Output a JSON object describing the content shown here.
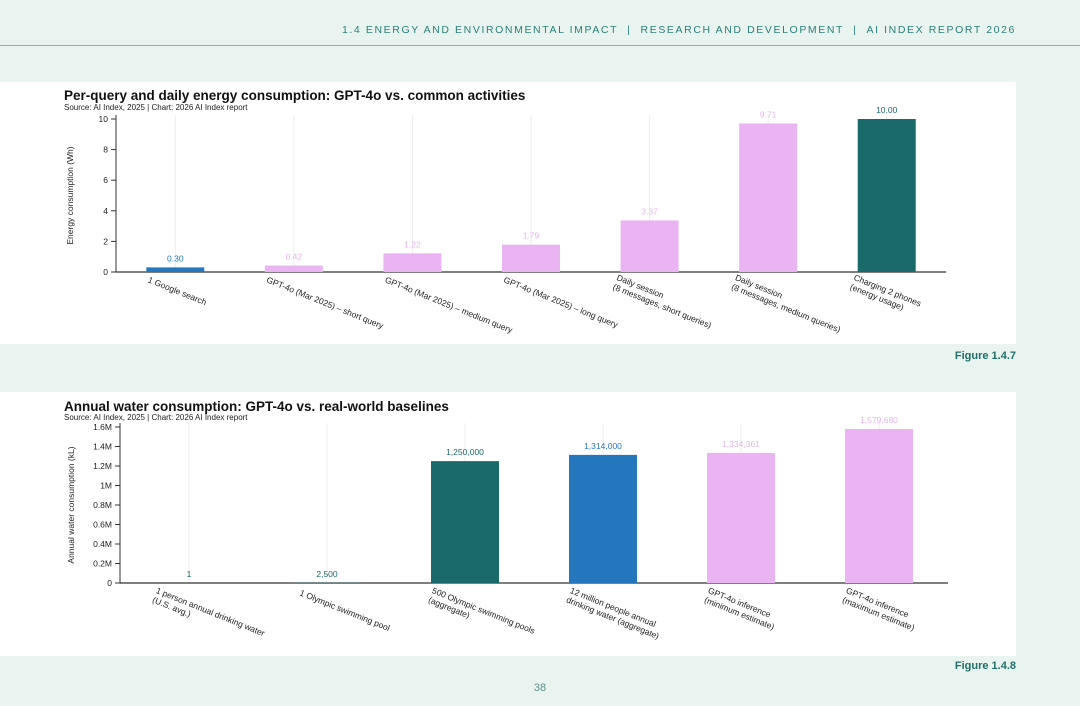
{
  "header": {
    "section": "1.4 ENERGY AND ENVIRONMENTAL IMPACT",
    "chapter": "RESEARCH AND DEVELOPMENT",
    "report": "AI INDEX REPORT 2026",
    "separator": "|"
  },
  "page_number": "38",
  "colors": {
    "pink": "#eab4f2",
    "teal": "#1b6a6a",
    "blue": "#2577bd",
    "header_text": "#2a7f78",
    "background": "#e9f4f0"
  },
  "chart_data": [
    {
      "type": "bar",
      "title": "Per-query and daily energy consumption: GPT-4o vs. common activities",
      "source": "Source: AI Index, 2025 | Chart: 2026 AI Index report",
      "ylabel": "Energy consumption (Wh)",
      "xlabel": "",
      "ylim": [
        0,
        10
      ],
      "yticks": [
        "0",
        "2",
        "4",
        "6",
        "8",
        "10"
      ],
      "grid": true,
      "categories": [
        [
          "1 Google search"
        ],
        [
          "GPT-4o (Mar 2025) – short query"
        ],
        [
          "GPT-4o (Mar 2025) – medium query"
        ],
        [
          "GPT-4o (Mar 2025) – long query"
        ],
        [
          "Daily session",
          "(8 messages, short queries)"
        ],
        [
          "Daily session",
          "(8 messages, medium queries)"
        ],
        [
          "Charging 2 phones",
          "(energy usage)"
        ]
      ],
      "values": [
        0.3,
        0.42,
        1.22,
        1.79,
        3.37,
        9.71,
        10.0
      ],
      "value_labels": [
        "0.30",
        "0.42",
        "1.22",
        "1.79",
        "3.37",
        "9.71",
        "10.00"
      ],
      "bar_colors": [
        "#2577bd",
        "#eab4f2",
        "#eab4f2",
        "#eab4f2",
        "#eab4f2",
        "#eab4f2",
        "#1b6a6a"
      ],
      "figure_label": "Figure 1.4.7"
    },
    {
      "type": "bar",
      "title": "Annual water consumption: GPT-4o vs. real-world baselines",
      "source": "Source: AI Index, 2025 | Chart: 2026 AI Index report",
      "ylabel": "Annual water consumption (kL)",
      "xlabel": "",
      "ylim": [
        0,
        1600000
      ],
      "yticks": [
        "0",
        "0.2M",
        "0.4M",
        "0.6M",
        "0.8M",
        "1M",
        "1.2M",
        "1.4M",
        "1.6M"
      ],
      "grid": true,
      "categories": [
        [
          "1 person annual drinking water",
          "(U.S. avg.)"
        ],
        [
          "1 Olympic swimming pool"
        ],
        [
          "500 Olympic swimming pools",
          "(aggregate)"
        ],
        [
          "12 million people annual",
          "drinking water (aggregate)"
        ],
        [
          "GPT-4o inference",
          "(minimum estimate)"
        ],
        [
          "GPT-4o inference",
          "(maximum estimate)"
        ]
      ],
      "values": [
        1,
        2500,
        1250000,
        1314000,
        1334361,
        1579680
      ],
      "value_labels": [
        "1",
        "2,500",
        "1,250,000",
        "1,314,000",
        "1,334,361",
        "1,579,680"
      ],
      "bar_colors": [
        "#1b6a6a",
        "#1b6a6a",
        "#1b6a6a",
        "#2577bd",
        "#eab4f2",
        "#eab4f2"
      ],
      "figure_label": "Figure 1.4.8"
    }
  ]
}
